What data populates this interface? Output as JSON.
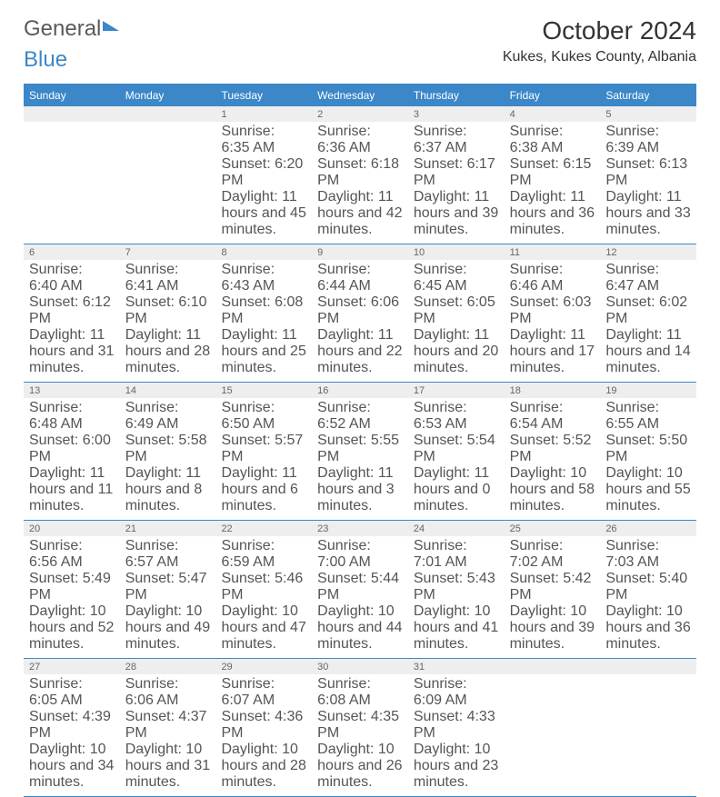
{
  "logo": {
    "part1": "General",
    "part2": "Blue"
  },
  "title": "October 2024",
  "location": "Kukes, Kukes County, Albania",
  "colors": {
    "header_bg": "#3b87c8",
    "header_text": "#ffffff",
    "daynum_bg": "#eeeeee",
    "text": "#555555",
    "page_bg": "#ffffff"
  },
  "day_names": [
    "Sunday",
    "Monday",
    "Tuesday",
    "Wednesday",
    "Thursday",
    "Friday",
    "Saturday"
  ],
  "weeks": [
    [
      {
        "n": "",
        "sr": "",
        "ss": "",
        "dl": ""
      },
      {
        "n": "",
        "sr": "",
        "ss": "",
        "dl": ""
      },
      {
        "n": "1",
        "sr": "Sunrise: 6:35 AM",
        "ss": "Sunset: 6:20 PM",
        "dl": "Daylight: 11 hours and 45 minutes."
      },
      {
        "n": "2",
        "sr": "Sunrise: 6:36 AM",
        "ss": "Sunset: 6:18 PM",
        "dl": "Daylight: 11 hours and 42 minutes."
      },
      {
        "n": "3",
        "sr": "Sunrise: 6:37 AM",
        "ss": "Sunset: 6:17 PM",
        "dl": "Daylight: 11 hours and 39 minutes."
      },
      {
        "n": "4",
        "sr": "Sunrise: 6:38 AM",
        "ss": "Sunset: 6:15 PM",
        "dl": "Daylight: 11 hours and 36 minutes."
      },
      {
        "n": "5",
        "sr": "Sunrise: 6:39 AM",
        "ss": "Sunset: 6:13 PM",
        "dl": "Daylight: 11 hours and 33 minutes."
      }
    ],
    [
      {
        "n": "6",
        "sr": "Sunrise: 6:40 AM",
        "ss": "Sunset: 6:12 PM",
        "dl": "Daylight: 11 hours and 31 minutes."
      },
      {
        "n": "7",
        "sr": "Sunrise: 6:41 AM",
        "ss": "Sunset: 6:10 PM",
        "dl": "Daylight: 11 hours and 28 minutes."
      },
      {
        "n": "8",
        "sr": "Sunrise: 6:43 AM",
        "ss": "Sunset: 6:08 PM",
        "dl": "Daylight: 11 hours and 25 minutes."
      },
      {
        "n": "9",
        "sr": "Sunrise: 6:44 AM",
        "ss": "Sunset: 6:06 PM",
        "dl": "Daylight: 11 hours and 22 minutes."
      },
      {
        "n": "10",
        "sr": "Sunrise: 6:45 AM",
        "ss": "Sunset: 6:05 PM",
        "dl": "Daylight: 11 hours and 20 minutes."
      },
      {
        "n": "11",
        "sr": "Sunrise: 6:46 AM",
        "ss": "Sunset: 6:03 PM",
        "dl": "Daylight: 11 hours and 17 minutes."
      },
      {
        "n": "12",
        "sr": "Sunrise: 6:47 AM",
        "ss": "Sunset: 6:02 PM",
        "dl": "Daylight: 11 hours and 14 minutes."
      }
    ],
    [
      {
        "n": "13",
        "sr": "Sunrise: 6:48 AM",
        "ss": "Sunset: 6:00 PM",
        "dl": "Daylight: 11 hours and 11 minutes."
      },
      {
        "n": "14",
        "sr": "Sunrise: 6:49 AM",
        "ss": "Sunset: 5:58 PM",
        "dl": "Daylight: 11 hours and 8 minutes."
      },
      {
        "n": "15",
        "sr": "Sunrise: 6:50 AM",
        "ss": "Sunset: 5:57 PM",
        "dl": "Daylight: 11 hours and 6 minutes."
      },
      {
        "n": "16",
        "sr": "Sunrise: 6:52 AM",
        "ss": "Sunset: 5:55 PM",
        "dl": "Daylight: 11 hours and 3 minutes."
      },
      {
        "n": "17",
        "sr": "Sunrise: 6:53 AM",
        "ss": "Sunset: 5:54 PM",
        "dl": "Daylight: 11 hours and 0 minutes."
      },
      {
        "n": "18",
        "sr": "Sunrise: 6:54 AM",
        "ss": "Sunset: 5:52 PM",
        "dl": "Daylight: 10 hours and 58 minutes."
      },
      {
        "n": "19",
        "sr": "Sunrise: 6:55 AM",
        "ss": "Sunset: 5:50 PM",
        "dl": "Daylight: 10 hours and 55 minutes."
      }
    ],
    [
      {
        "n": "20",
        "sr": "Sunrise: 6:56 AM",
        "ss": "Sunset: 5:49 PM",
        "dl": "Daylight: 10 hours and 52 minutes."
      },
      {
        "n": "21",
        "sr": "Sunrise: 6:57 AM",
        "ss": "Sunset: 5:47 PM",
        "dl": "Daylight: 10 hours and 49 minutes."
      },
      {
        "n": "22",
        "sr": "Sunrise: 6:59 AM",
        "ss": "Sunset: 5:46 PM",
        "dl": "Daylight: 10 hours and 47 minutes."
      },
      {
        "n": "23",
        "sr": "Sunrise: 7:00 AM",
        "ss": "Sunset: 5:44 PM",
        "dl": "Daylight: 10 hours and 44 minutes."
      },
      {
        "n": "24",
        "sr": "Sunrise: 7:01 AM",
        "ss": "Sunset: 5:43 PM",
        "dl": "Daylight: 10 hours and 41 minutes."
      },
      {
        "n": "25",
        "sr": "Sunrise: 7:02 AM",
        "ss": "Sunset: 5:42 PM",
        "dl": "Daylight: 10 hours and 39 minutes."
      },
      {
        "n": "26",
        "sr": "Sunrise: 7:03 AM",
        "ss": "Sunset: 5:40 PM",
        "dl": "Daylight: 10 hours and 36 minutes."
      }
    ],
    [
      {
        "n": "27",
        "sr": "Sunrise: 6:05 AM",
        "ss": "Sunset: 4:39 PM",
        "dl": "Daylight: 10 hours and 34 minutes."
      },
      {
        "n": "28",
        "sr": "Sunrise: 6:06 AM",
        "ss": "Sunset: 4:37 PM",
        "dl": "Daylight: 10 hours and 31 minutes."
      },
      {
        "n": "29",
        "sr": "Sunrise: 6:07 AM",
        "ss": "Sunset: 4:36 PM",
        "dl": "Daylight: 10 hours and 28 minutes."
      },
      {
        "n": "30",
        "sr": "Sunrise: 6:08 AM",
        "ss": "Sunset: 4:35 PM",
        "dl": "Daylight: 10 hours and 26 minutes."
      },
      {
        "n": "31",
        "sr": "Sunrise: 6:09 AM",
        "ss": "Sunset: 4:33 PM",
        "dl": "Daylight: 10 hours and 23 minutes."
      },
      {
        "n": "",
        "sr": "",
        "ss": "",
        "dl": ""
      },
      {
        "n": "",
        "sr": "",
        "ss": "",
        "dl": ""
      }
    ]
  ]
}
